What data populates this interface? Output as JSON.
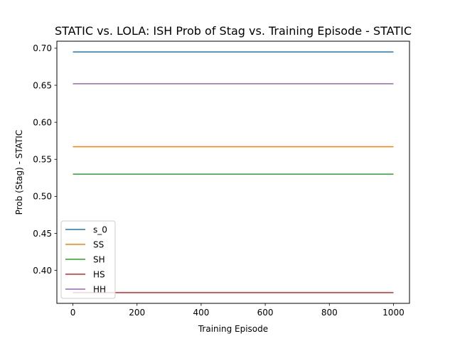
{
  "chart_data": {
    "type": "line",
    "title": "STATIC vs. LOLA: ISH Prob of Stag vs. Training Episode - STATIC",
    "xlabel": "Training Episode",
    "ylabel": "Prob (Stag) - STATIC",
    "xlim": [
      -50,
      1050
    ],
    "ylim": [
      0.3555,
      0.7095
    ],
    "x_ticks": [
      0,
      200,
      400,
      600,
      800,
      1000
    ],
    "y_ticks": [
      0.4,
      0.45,
      0.5,
      0.55,
      0.6,
      0.65,
      0.7
    ],
    "legend_position": "lower-left",
    "grid": false,
    "series": [
      {
        "name": "s_0",
        "color": "#1f77b4",
        "x": [
          0,
          1000
        ],
        "y": [
          0.695,
          0.695
        ]
      },
      {
        "name": "SS",
        "color": "#ff7f0e",
        "x": [
          0,
          1000
        ],
        "y": [
          0.567,
          0.567
        ]
      },
      {
        "name": "SH",
        "color": "#2ca02c",
        "x": [
          0,
          1000
        ],
        "y": [
          0.53,
          0.53
        ]
      },
      {
        "name": "HS",
        "color": "#d62728",
        "x": [
          0,
          1000
        ],
        "y": [
          0.37,
          0.37
        ]
      },
      {
        "name": "HH",
        "color": "#9467bd",
        "x": [
          0,
          1000
        ],
        "y": [
          0.652,
          0.652
        ]
      }
    ]
  }
}
